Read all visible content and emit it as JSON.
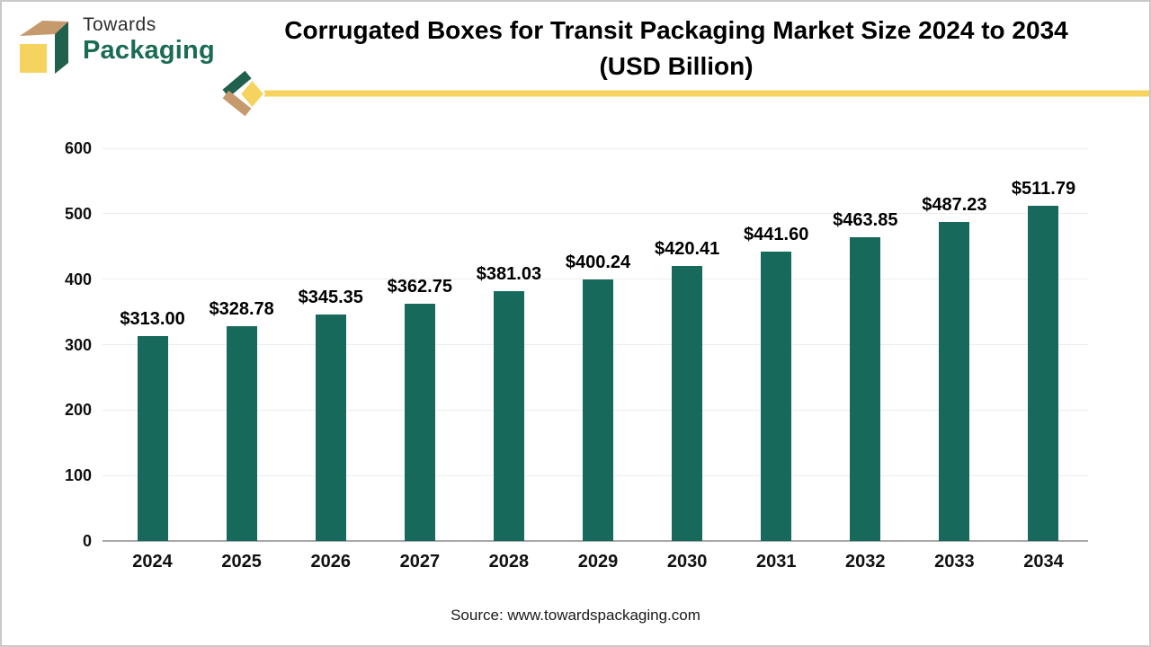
{
  "header": {
    "brand_top": "Towards",
    "brand_bottom": "Packaging",
    "title_line1": "Corrugated Boxes for Transit Packaging Market Size 2024 to 2034",
    "title_line2": "(USD Billion)"
  },
  "chart_data": {
    "type": "bar",
    "title": "Corrugated Boxes for Transit Packaging Market Size 2024 to 2034 (USD Billion)",
    "categories": [
      "2024",
      "2025",
      "2026",
      "2027",
      "2028",
      "2029",
      "2030",
      "2031",
      "2032",
      "2033",
      "2034"
    ],
    "values": [
      313.0,
      328.78,
      345.35,
      362.75,
      381.03,
      400.24,
      420.41,
      441.6,
      463.85,
      487.23,
      511.79
    ],
    "value_labels": [
      "$313.00",
      "$328.78",
      "$345.35",
      "$362.75",
      "$381.03",
      "$400.24",
      "$420.41",
      "$441.60",
      "$463.85",
      "$487.23",
      "$511.79"
    ],
    "xlabel": "",
    "ylabel": "",
    "ylim": [
      0,
      600
    ],
    "yticks": [
      0,
      100,
      200,
      300,
      400,
      500,
      600
    ],
    "grid": true,
    "legend_position": "none",
    "bar_color": "#17695B"
  },
  "footer": {
    "source_label": "Source: www.towardspackaging.com"
  },
  "colors": {
    "bar": "#17695B",
    "accent_yellow": "#F6D35E",
    "accent_brown": "#C69A6D",
    "logo_green": "#20604D",
    "brand_text_green": "#1A6B55",
    "gridline": "#EBEDEE",
    "axis_line": "#A9A9A9",
    "title_text": "#000000"
  }
}
